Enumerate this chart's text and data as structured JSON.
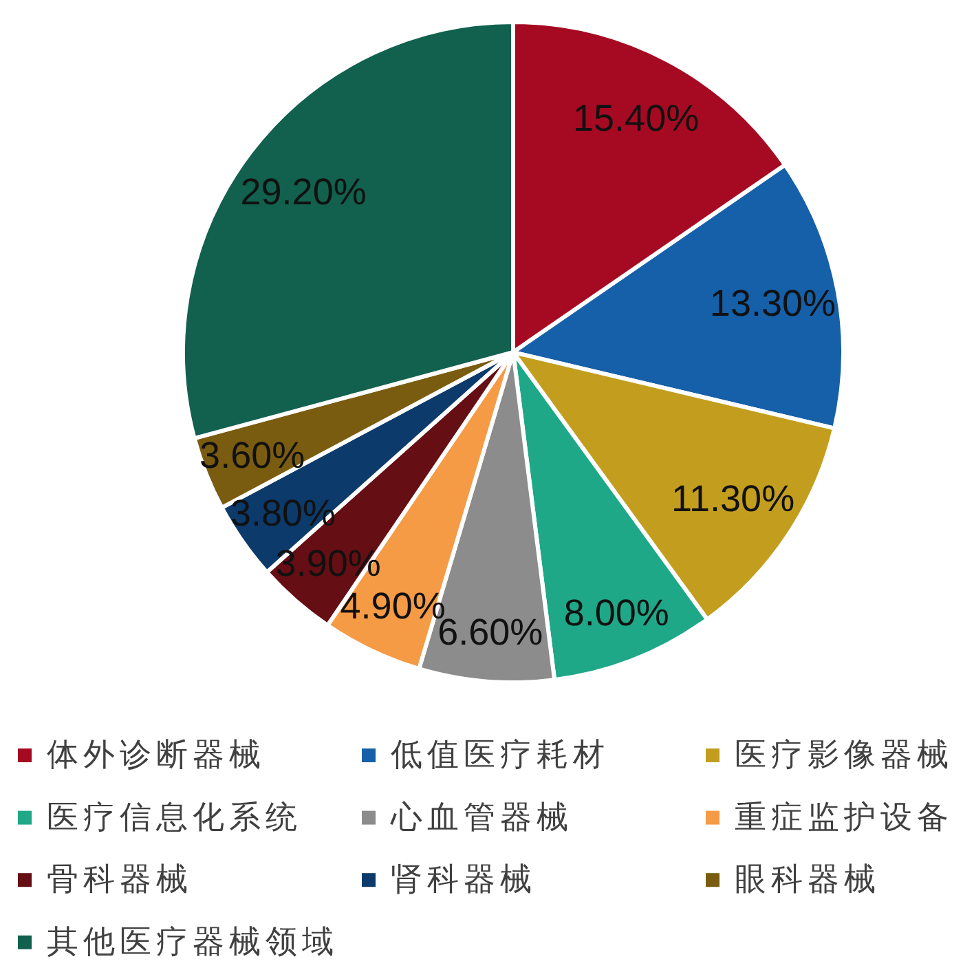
{
  "chart_data": {
    "type": "pie",
    "categories": [
      "体外诊断器械",
      "低值医疗耗材",
      "医疗影像器械",
      "医疗信息化系统",
      "心血管器械",
      "重症监护设备",
      "骨科器械",
      "肾科器械",
      "眼科器械",
      "其他医疗器械领域"
    ],
    "values": [
      15.4,
      13.3,
      11.3,
      8.0,
      6.6,
      4.9,
      3.9,
      3.8,
      3.6,
      29.2
    ],
    "colors": [
      "#a50a22",
      "#1560a8",
      "#c39e1e",
      "#1fa888",
      "#8c8c8c",
      "#f59a45",
      "#650e14",
      "#0c3a6a",
      "#7a5c10",
      "#12604e"
    ],
    "value_labels": [
      "15.40%",
      "13.30%",
      "11.30%",
      "8.00%",
      "6.60%",
      "4.90%",
      "3.90%",
      "3.80%",
      "3.60%",
      "29.20%"
    ],
    "legend": "bottom"
  }
}
